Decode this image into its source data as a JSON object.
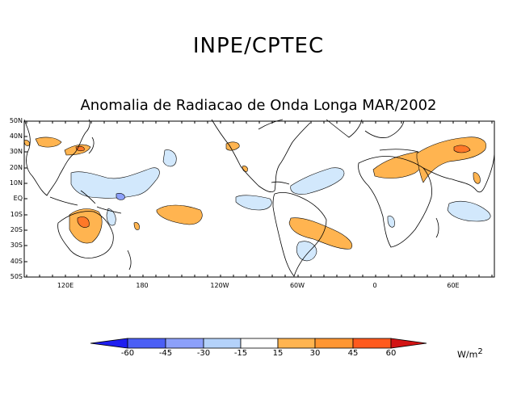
{
  "header": {
    "organization": "INPE/CPTEC"
  },
  "map": {
    "title": "Anomalia de Radiacao de Onda Longa MAR/2002",
    "lat_labels": [
      "50N",
      "40N",
      "30N",
      "20N",
      "10N",
      "EQ",
      "10S",
      "20S",
      "30S",
      "40S",
      "50S"
    ],
    "lon_labels": [
      "120E",
      "180",
      "120W",
      "60W",
      "0",
      "60E"
    ]
  },
  "colorbar": {
    "labels": [
      "-60",
      "-45",
      "-30",
      "-15",
      "15",
      "30",
      "45",
      "60"
    ],
    "colors": [
      "#1e1ef0",
      "#4b5ff5",
      "#8ca0fa",
      "#b4d2fa",
      "#d2e8fc",
      "#ffffff",
      "#ffb450",
      "#ff9632",
      "#ff7828",
      "#ff5a1e",
      "#d21414"
    ],
    "units": "W/m",
    "units_exponent": "2"
  },
  "legend_colors": {
    "positive_light": "#ffb450",
    "positive_mid": "#ff7828",
    "negative_light": "#d2e8fc",
    "negative_mid": "#8ca0fa"
  }
}
